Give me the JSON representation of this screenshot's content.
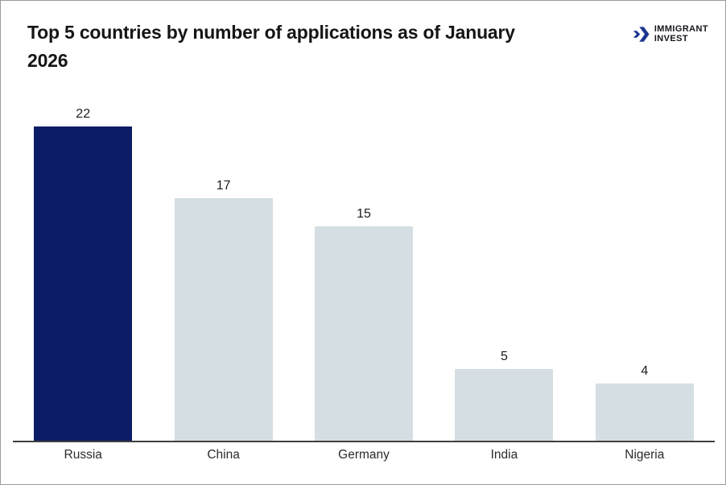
{
  "page": {
    "background": "#ffffff",
    "border_color": "#9c9c9c"
  },
  "header": {
    "title": "Top 5 countries by number of applications as of January 2026",
    "logo": {
      "icon": "double-chevron-right-icon",
      "icon_color": "#1c3690",
      "line1": "IMMIGRANT",
      "line2": "INVEST",
      "text_color": "#16161d"
    }
  },
  "chart_data": {
    "type": "bar",
    "title": "Top 5 countries by number of applications as of January 2026",
    "categories": [
      "Russia",
      "China",
      "Germany",
      "India",
      "Nigeria"
    ],
    "values": [
      22,
      17,
      15,
      5,
      4
    ],
    "bar_colors": [
      "#0c1c66",
      "#d5dee3",
      "#d5dee3",
      "#d5dee3",
      "#d5dee3"
    ],
    "highlight_color": "#0c1c66",
    "default_color": "#d5dee3",
    "axis_color": "#3f3f3f",
    "xlabel": "",
    "ylabel": "",
    "ylim": [
      0,
      22
    ],
    "grid": false,
    "legend": "none",
    "data_labels": true
  }
}
